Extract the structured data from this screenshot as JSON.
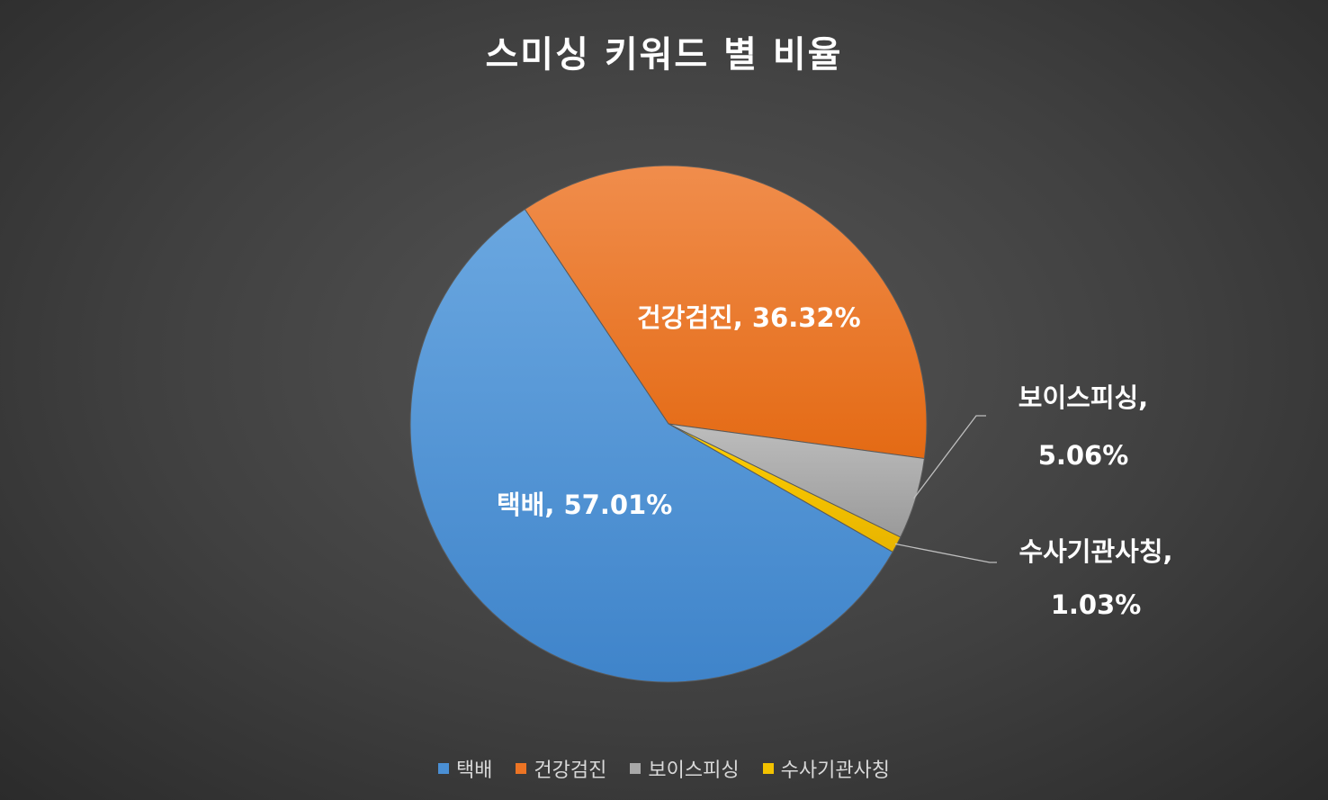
{
  "chart_data": {
    "type": "pie",
    "title": "스미싱 키워드 별 비율",
    "categories": [
      "택배",
      "건강검진",
      "보이스피싱",
      "수사기관사칭"
    ],
    "values": [
      57.01,
      36.32,
      5.06,
      1.03
    ],
    "unit": "%",
    "colors": [
      "#4a8fd4",
      "#ec7424",
      "#a8a8a8",
      "#f2c200"
    ],
    "data_labels": [
      {
        "name": "택배",
        "value": "57.01%"
      },
      {
        "name": "건강검진",
        "value": "36.32%"
      },
      {
        "name": "보이스피싱,",
        "value": "5.06%"
      },
      {
        "name": "수사기관사칭,",
        "value": "1.03%"
      }
    ],
    "legend_position": "bottom",
    "background": "#404040"
  }
}
